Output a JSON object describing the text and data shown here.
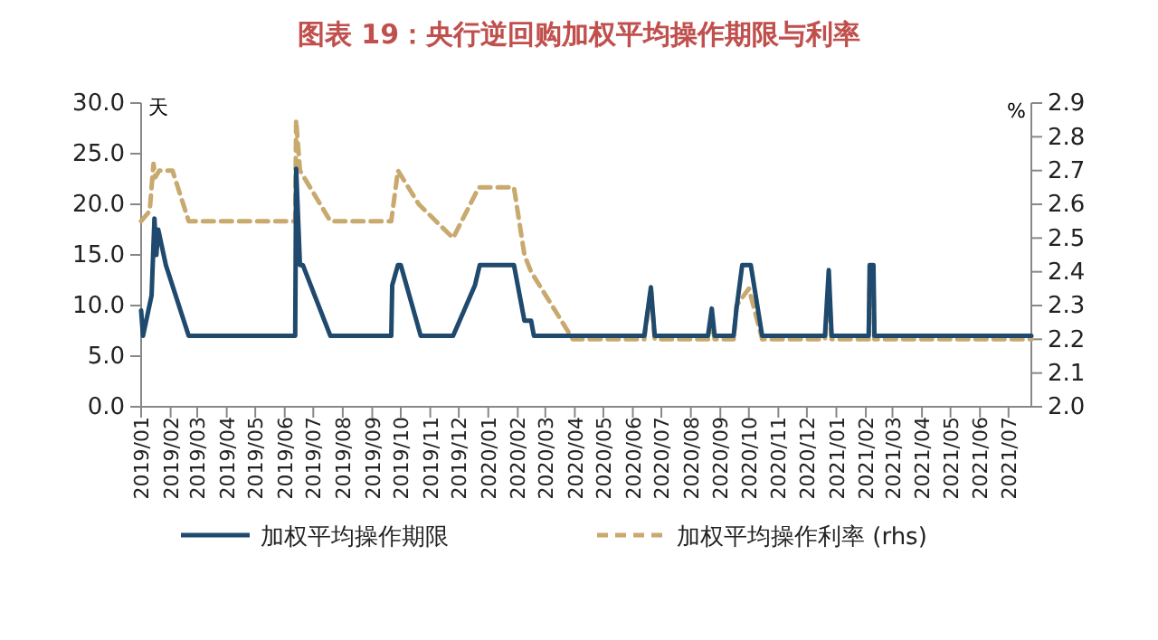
{
  "chart_data": {
    "type": "line",
    "title": "图表 19：央行逆回购加权平均操作期限与利率",
    "ylabel": "天",
    "y2label": "%",
    "legend": "bottom",
    "xlim": [
      "2019-01-01",
      "2021-07-25"
    ],
    "xticks": [
      {
        "value": "2019-01-01",
        "label": "2019/01"
      },
      {
        "value": "2019-02-01",
        "label": "2019/02"
      },
      {
        "value": "2019-03-01",
        "label": "2019/03"
      },
      {
        "value": "2019-04-01",
        "label": "2019/04"
      },
      {
        "value": "2019-05-01",
        "label": "2019/05"
      },
      {
        "value": "2019-06-01",
        "label": "2019/06"
      },
      {
        "value": "2019-07-01",
        "label": "2019/07"
      },
      {
        "value": "2019-08-01",
        "label": "2019/08"
      },
      {
        "value": "2019-09-01",
        "label": "2019/09"
      },
      {
        "value": "2019-10-01",
        "label": "2019/10"
      },
      {
        "value": "2019-11-01",
        "label": "2019/11"
      },
      {
        "value": "2019-12-01",
        "label": "2019/12"
      },
      {
        "value": "2020-01-01",
        "label": "2020/01"
      },
      {
        "value": "2020-02-01",
        "label": "2020/02"
      },
      {
        "value": "2020-03-01",
        "label": "2020/03"
      },
      {
        "value": "2020-04-01",
        "label": "2020/04"
      },
      {
        "value": "2020-05-01",
        "label": "2020/05"
      },
      {
        "value": "2020-06-01",
        "label": "2020/06"
      },
      {
        "value": "2020-07-01",
        "label": "2020/07"
      },
      {
        "value": "2020-08-01",
        "label": "2020/08"
      },
      {
        "value": "2020-09-01",
        "label": "2020/09"
      },
      {
        "value": "2020-10-01",
        "label": "2020/10"
      },
      {
        "value": "2020-11-01",
        "label": "2020/11"
      },
      {
        "value": "2020-12-01",
        "label": "2020/12"
      },
      {
        "value": "2021-01-01",
        "label": "2021/01"
      },
      {
        "value": "2021-02-01",
        "label": "2021/02"
      },
      {
        "value": "2021-03-01",
        "label": "2021/03"
      },
      {
        "value": "2021-04-01",
        "label": "2021/04"
      },
      {
        "value": "2021-05-01",
        "label": "2021/05"
      },
      {
        "value": "2021-06-01",
        "label": "2021/06"
      },
      {
        "value": "2021-07-01",
        "label": "2021/07"
      }
    ],
    "ylim": [
      0,
      30
    ],
    "yticks": [
      {
        "value": 0,
        "label": "0.0"
      },
      {
        "value": 5,
        "label": "5.0"
      },
      {
        "value": 10,
        "label": "10.0"
      },
      {
        "value": 15,
        "label": "15.0"
      },
      {
        "value": 20,
        "label": "20.0"
      },
      {
        "value": 25,
        "label": "25.0"
      },
      {
        "value": 30,
        "label": "30.0"
      }
    ],
    "y2lim": [
      2.0,
      2.9
    ],
    "y2ticks": [
      {
        "value": 2.0,
        "label": "2.0"
      },
      2.1,
      2.2,
      2.3,
      2.4,
      2.5,
      2.6,
      2.7,
      2.8,
      2.9
    ],
    "series": [
      {
        "name": "加权平均操作期限",
        "color": "#1f4a6e",
        "line_style": "solid",
        "x": [
          "2019-01-01",
          "2019-01-03",
          "2019-01-12",
          "2019-01-15",
          "2019-01-17",
          "2019-01-19",
          "2019-01-27",
          "2019-02-20",
          "2019-06-12",
          "2019-06-13",
          "2019-06-17",
          "2019-06-20",
          "2019-07-19",
          "2019-09-21",
          "2019-09-22",
          "2019-09-28",
          "2019-10-01",
          "2019-10-22",
          "2019-11-25",
          "2019-12-18",
          "2019-12-23",
          "2020-01-28",
          "2020-02-08",
          "2020-02-15",
          "2020-02-18",
          "2020-06-13",
          "2020-06-20",
          "2020-06-24",
          "2020-08-19",
          "2020-08-23",
          "2020-08-26",
          "2020-09-15",
          "2020-09-18",
          "2020-09-24",
          "2020-10-03",
          "2020-10-15",
          "2020-12-20",
          "2020-12-24",
          "2020-12-27",
          "2021-02-04",
          "2021-02-05",
          "2021-02-09",
          "2021-02-10",
          "2021-07-25"
        ],
        "values": [
          9.5,
          7,
          11,
          18.6,
          15,
          17.5,
          14,
          7,
          7,
          23.5,
          14,
          14,
          7,
          7,
          12,
          14,
          14,
          7,
          7,
          12,
          14,
          14,
          8.5,
          8.5,
          7,
          7,
          11.8,
          7,
          7,
          9.7,
          7,
          7,
          9.7,
          14,
          14,
          7,
          7,
          13.5,
          7,
          7,
          14,
          14,
          7,
          7
        ]
      },
      {
        "name": "加权平均操作利率 (rhs)",
        "color": "#c8a96e",
        "line_style": "dashed",
        "axis": "y2",
        "x": [
          "2019-01-01",
          "2019-01-10",
          "2019-01-14",
          "2019-01-16",
          "2019-01-20",
          "2019-02-03",
          "2019-02-20",
          "2019-06-12",
          "2019-06-13",
          "2019-06-17",
          "2019-07-19",
          "2019-09-21",
          "2019-09-28",
          "2019-10-20",
          "2019-11-25",
          "2019-12-22",
          "2020-01-28",
          "2020-02-08",
          "2020-02-15",
          "2020-03-30",
          "2020-06-13",
          "2020-06-20",
          "2020-06-24",
          "2020-08-19",
          "2020-08-23",
          "2020-08-26",
          "2020-09-15",
          "2020-09-18",
          "2020-10-01",
          "2020-10-15",
          "2020-12-20",
          "2020-12-24",
          "2020-12-27",
          "2021-02-04",
          "2021-02-05",
          "2021-02-09",
          "2021-02-10",
          "2021-07-25"
        ],
        "values": [
          2.55,
          2.58,
          2.72,
          2.68,
          2.7,
          2.7,
          2.55,
          2.55,
          2.85,
          2.7,
          2.55,
          2.55,
          2.7,
          2.6,
          2.5,
          2.65,
          2.65,
          2.45,
          2.4,
          2.2,
          2.2,
          2.35,
          2.2,
          2.2,
          2.25,
          2.2,
          2.2,
          2.3,
          2.35,
          2.2,
          2.2,
          2.35,
          2.2,
          2.2,
          2.35,
          2.35,
          2.2,
          2.2
        ]
      }
    ]
  }
}
